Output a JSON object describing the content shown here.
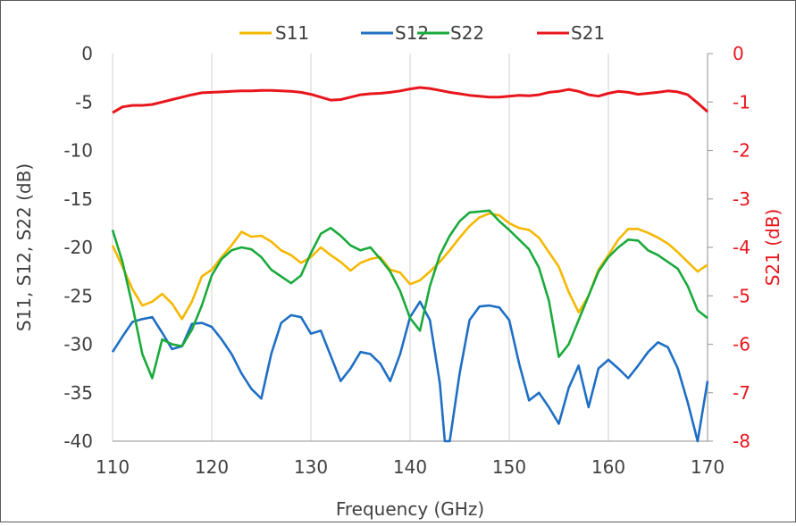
{
  "chart_data": {
    "type": "line",
    "xlabel": "Frequency (GHz)",
    "ylabel_left": "S11, S12, S22 (dB)",
    "ylabel_right": "S21 (dB)",
    "xlim": [
      110,
      170
    ],
    "ylim_left": [
      -40,
      0
    ],
    "ylim_right": [
      -8,
      0
    ],
    "x_ticks": [
      "110",
      "120",
      "130",
      "140",
      "150",
      "160",
      "170"
    ],
    "y_left_ticks": [
      "0",
      "-5",
      "-10",
      "-15",
      "-20",
      "-25",
      "-30",
      "-35",
      "-40"
    ],
    "y_right_ticks": [
      "0",
      "-1",
      "-2",
      "-3",
      "-4",
      "-5",
      "-6",
      "-7",
      "-8"
    ],
    "grid": "vertical",
    "legend_position": "top",
    "colors": {
      "S11": "#f5b800",
      "S12": "#1f6fc4",
      "S22": "#1aaa3c",
      "S21": "#e8161c"
    },
    "series": [
      {
        "name": "S11",
        "axis": "left",
        "x": [
          110,
          111,
          112,
          113,
          114,
          115,
          116,
          117,
          118,
          119,
          120,
          121,
          122,
          123,
          124,
          125,
          126,
          127,
          128,
          129,
          130,
          131,
          132,
          133,
          134,
          135,
          136,
          137,
          138,
          139,
          140,
          141,
          142,
          143,
          144,
          145,
          146,
          147,
          148,
          149,
          150,
          151,
          152,
          153,
          154,
          155,
          156,
          157,
          158,
          159,
          160,
          161,
          162,
          163,
          164,
          165,
          166,
          167,
          168,
          169,
          170
        ],
        "y": [
          -19.8,
          -22,
          -24.3,
          -26,
          -25.6,
          -24.8,
          -25.8,
          -27.4,
          -25.6,
          -23,
          -22.3,
          -21,
          -19.8,
          -18.4,
          -18.9,
          -18.8,
          -19.4,
          -20.3,
          -20.8,
          -21.6,
          -21,
          -20,
          -20.8,
          -21.5,
          -22.4,
          -21.6,
          -21.2,
          -21,
          -22.3,
          -22.6,
          -23.8,
          -23.4,
          -22.5,
          -21.5,
          -20.3,
          -19,
          -17.8,
          -16.9,
          -16.5,
          -16.7,
          -17.5,
          -18,
          -18.2,
          -19,
          -20.5,
          -22,
          -24.6,
          -26.7,
          -25,
          -22.3,
          -20.8,
          -19.2,
          -18.1,
          -18.1,
          -18.5,
          -19,
          -19.6,
          -20.5,
          -21.5,
          -22.5,
          -21.8
        ]
      },
      {
        "name": "S12",
        "axis": "left",
        "x": [
          110,
          111,
          112,
          113,
          114,
          115,
          116,
          117,
          118,
          119,
          120,
          121,
          122,
          123,
          124,
          125,
          126,
          127,
          128,
          129,
          130,
          131,
          132,
          133,
          134,
          135,
          136,
          137,
          138,
          139,
          140,
          141,
          142,
          143,
          143.5,
          144,
          145,
          146,
          147,
          148,
          149,
          150,
          151,
          152,
          153,
          154,
          155,
          156,
          157,
          158,
          159,
          160,
          161,
          162,
          163,
          164,
          165,
          166,
          167,
          168,
          169,
          170
        ],
        "y": [
          -30.8,
          -29.2,
          -27.7,
          -27.4,
          -27.2,
          -28.8,
          -30.5,
          -30.2,
          -27.9,
          -27.8,
          -28.2,
          -29.5,
          -31,
          -33,
          -34.6,
          -35.6,
          -31,
          -27.8,
          -27,
          -27.2,
          -28.9,
          -28.6,
          -31.2,
          -33.8,
          -32.5,
          -30.8,
          -31,
          -32,
          -33.8,
          -31,
          -27.2,
          -25.6,
          -27.5,
          -34,
          -40,
          -40,
          -33,
          -27.5,
          -26.1,
          -26,
          -26.2,
          -27.5,
          -32,
          -35.8,
          -35,
          -36.5,
          -38.2,
          -34.5,
          -32.2,
          -36.5,
          -32.5,
          -31.6,
          -32.5,
          -33.5,
          -32.2,
          -30.8,
          -29.8,
          -30.3,
          -32.5,
          -36,
          -40,
          -33.8
        ]
      },
      {
        "name": "S22",
        "axis": "left",
        "x": [
          110,
          111,
          112,
          113,
          114,
          115,
          116,
          117,
          118,
          119,
          120,
          121,
          122,
          123,
          124,
          125,
          126,
          127,
          128,
          129,
          130,
          131,
          132,
          133,
          134,
          135,
          136,
          137,
          138,
          139,
          140,
          141,
          142,
          143,
          144,
          145,
          146,
          147,
          148,
          149,
          150,
          151,
          152,
          153,
          154,
          155,
          156,
          157,
          158,
          159,
          160,
          161,
          162,
          163,
          164,
          165,
          166,
          167,
          168,
          169,
          170
        ],
        "y": [
          -18.2,
          -21.5,
          -26,
          -31,
          -33.5,
          -29.5,
          -30,
          -30.2,
          -28.5,
          -26,
          -22.9,
          -21.2,
          -20.3,
          -20,
          -20.2,
          -21,
          -22.3,
          -23,
          -23.7,
          -22.9,
          -20.6,
          -18.6,
          -18,
          -18.8,
          -19.8,
          -20.3,
          -20,
          -21.2,
          -22.5,
          -24.5,
          -27.3,
          -28.6,
          -24,
          -20.8,
          -18.8,
          -17.3,
          -16.4,
          -16.3,
          -16.2,
          -17.3,
          -18.2,
          -19.2,
          -20.2,
          -22.1,
          -25.5,
          -31.3,
          -30,
          -27.5,
          -25,
          -22.5,
          -21,
          -20,
          -19.2,
          -19.3,
          -20.3,
          -20.8,
          -21.5,
          -22.2,
          -24,
          -26.5,
          -27.3
        ]
      },
      {
        "name": "S21",
        "axis": "right",
        "x": [
          110,
          111,
          112,
          113,
          114,
          115,
          116,
          117,
          118,
          119,
          120,
          121,
          122,
          123,
          124,
          125,
          126,
          127,
          128,
          129,
          130,
          131,
          132,
          133,
          134,
          135,
          136,
          137,
          138,
          139,
          140,
          141,
          142,
          143,
          144,
          145,
          146,
          147,
          148,
          149,
          150,
          151,
          152,
          153,
          154,
          155,
          156,
          157,
          158,
          159,
          160,
          161,
          162,
          163,
          164,
          165,
          166,
          167,
          168,
          169,
          170
        ],
        "y": [
          -1.22,
          -1.1,
          -1.07,
          -1.07,
          -1.05,
          -1.0,
          -0.95,
          -0.9,
          -0.85,
          -0.81,
          -0.8,
          -0.79,
          -0.78,
          -0.77,
          -0.77,
          -0.76,
          -0.76,
          -0.77,
          -0.78,
          -0.8,
          -0.84,
          -0.9,
          -0.96,
          -0.95,
          -0.9,
          -0.85,
          -0.83,
          -0.82,
          -0.8,
          -0.77,
          -0.73,
          -0.7,
          -0.72,
          -0.76,
          -0.8,
          -0.83,
          -0.86,
          -0.88,
          -0.9,
          -0.9,
          -0.88,
          -0.86,
          -0.87,
          -0.85,
          -0.8,
          -0.78,
          -0.74,
          -0.78,
          -0.85,
          -0.88,
          -0.82,
          -0.78,
          -0.8,
          -0.84,
          -0.82,
          -0.8,
          -0.77,
          -0.79,
          -0.85,
          -1.02,
          -1.2
        ]
      }
    ]
  }
}
